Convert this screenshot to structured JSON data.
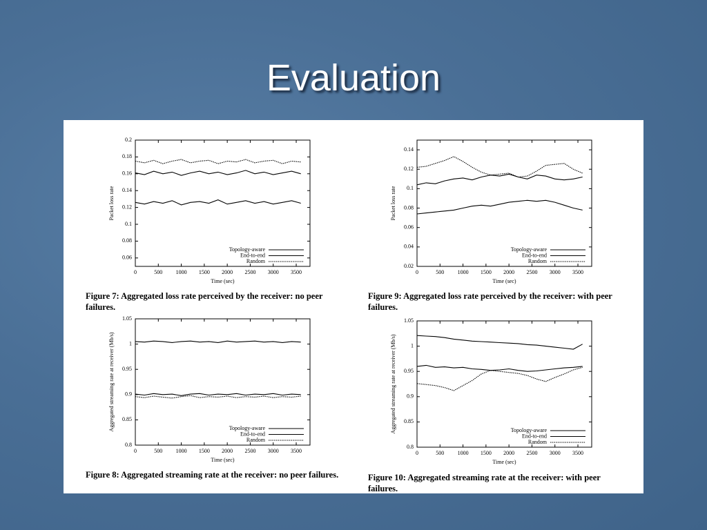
{
  "title": "Evaluation",
  "chart_data": [
    {
      "type": "line",
      "caption": "Figure 7: Aggregated loss rate perceived by the receiver: no peer failures.",
      "xlabel": "Time (sec)",
      "ylabel": "Packet loss rate",
      "x": [
        0,
        200,
        400,
        600,
        800,
        1000,
        1200,
        1400,
        1600,
        1800,
        2000,
        2200,
        2400,
        2600,
        2800,
        3000,
        3200,
        3400,
        3600
      ],
      "xlim": [
        0,
        3800
      ],
      "xticks": [
        0,
        500,
        1000,
        1500,
        2000,
        2500,
        3000,
        3500
      ],
      "ylim": [
        0.05,
        0.2
      ],
      "yticks": [
        0.06,
        0.08,
        0.1,
        0.12,
        0.14,
        0.16,
        0.18,
        0.2
      ],
      "legend": "lower right",
      "series": [
        {
          "name": "Topology-aware",
          "color": "#000000",
          "style": "solid",
          "values": [
            0.126,
            0.124,
            0.127,
            0.125,
            0.128,
            0.123,
            0.126,
            0.127,
            0.125,
            0.129,
            0.124,
            0.126,
            0.128,
            0.125,
            0.127,
            0.124,
            0.126,
            0.128,
            0.125
          ]
        },
        {
          "name": "End-to-end",
          "color": "#000000",
          "style": "solid",
          "values": [
            0.161,
            0.159,
            0.163,
            0.16,
            0.162,
            0.158,
            0.161,
            0.163,
            0.16,
            0.162,
            0.159,
            0.161,
            0.164,
            0.16,
            0.162,
            0.159,
            0.161,
            0.163,
            0.16
          ]
        },
        {
          "name": "Random",
          "color": "#000000",
          "style": "dotted",
          "values": [
            0.175,
            0.173,
            0.176,
            0.172,
            0.175,
            0.177,
            0.173,
            0.175,
            0.176,
            0.172,
            0.175,
            0.174,
            0.177,
            0.173,
            0.175,
            0.176,
            0.172,
            0.175,
            0.174
          ]
        }
      ]
    },
    {
      "type": "line",
      "caption": "Figure 8: Aggregated streaming rate at the receiver: no peer failures.",
      "xlabel": "Time (sec)",
      "ylabel": "Aggregated streaming rate at receiver (Mb/s)",
      "x": [
        0,
        200,
        400,
        600,
        800,
        1000,
        1200,
        1400,
        1600,
        1800,
        2000,
        2200,
        2400,
        2600,
        2800,
        3000,
        3200,
        3400,
        3600
      ],
      "xlim": [
        0,
        3800
      ],
      "xticks": [
        0,
        500,
        1000,
        1500,
        2000,
        2500,
        3000,
        3500
      ],
      "ylim": [
        0.8,
        1.05
      ],
      "yticks": [
        0.8,
        0.85,
        0.9,
        0.95,
        1,
        1.05
      ],
      "legend": "lower right",
      "series": [
        {
          "name": "Topology-aware",
          "color": "#000000",
          "style": "solid",
          "values": [
            1.005,
            1.004,
            1.006,
            1.005,
            1.003,
            1.005,
            1.006,
            1.004,
            1.005,
            1.003,
            1.006,
            1.004,
            1.005,
            1.006,
            1.004,
            1.005,
            1.003,
            1.005,
            1.004
          ]
        },
        {
          "name": "End-to-end",
          "color": "#000000",
          "style": "solid",
          "values": [
            0.901,
            0.899,
            0.902,
            0.9,
            0.901,
            0.898,
            0.901,
            0.902,
            0.899,
            0.901,
            0.9,
            0.902,
            0.899,
            0.901,
            0.9,
            0.902,
            0.899,
            0.901,
            0.9
          ]
        },
        {
          "name": "Random",
          "color": "#000000",
          "style": "dotted",
          "values": [
            0.896,
            0.894,
            0.897,
            0.895,
            0.893,
            0.896,
            0.898,
            0.894,
            0.896,
            0.895,
            0.897,
            0.894,
            0.896,
            0.895,
            0.897,
            0.894,
            0.896,
            0.895,
            0.897
          ]
        }
      ]
    },
    {
      "type": "line",
      "caption": "Figure 9: Aggregated loss rate perceived by the receiver: with peer failures.",
      "xlabel": "Time (sec)",
      "ylabel": "Packet loss rate",
      "x": [
        0,
        200,
        400,
        600,
        800,
        1000,
        1200,
        1400,
        1600,
        1800,
        2000,
        2200,
        2400,
        2600,
        2800,
        3000,
        3200,
        3400,
        3600
      ],
      "xlim": [
        0,
        3800
      ],
      "xticks": [
        0,
        500,
        1000,
        1500,
        2000,
        2500,
        3000,
        3500
      ],
      "ylim": [
        0.02,
        0.15
      ],
      "yticks": [
        0.02,
        0.04,
        0.06,
        0.08,
        0.1,
        0.12,
        0.14
      ],
      "legend": "lower right",
      "series": [
        {
          "name": "Topology-aware",
          "color": "#000000",
          "style": "solid",
          "values": [
            0.074,
            0.075,
            0.076,
            0.077,
            0.078,
            0.08,
            0.082,
            0.083,
            0.082,
            0.084,
            0.086,
            0.087,
            0.088,
            0.087,
            0.088,
            0.086,
            0.083,
            0.08,
            0.078
          ]
        },
        {
          "name": "End-to-end",
          "color": "#000000",
          "style": "solid",
          "values": [
            0.104,
            0.106,
            0.105,
            0.108,
            0.11,
            0.111,
            0.109,
            0.112,
            0.114,
            0.113,
            0.115,
            0.112,
            0.11,
            0.114,
            0.113,
            0.11,
            0.109,
            0.11,
            0.112
          ]
        },
        {
          "name": "Random",
          "color": "#000000",
          "style": "dotted",
          "values": [
            0.122,
            0.123,
            0.126,
            0.129,
            0.133,
            0.128,
            0.122,
            0.117,
            0.114,
            0.115,
            0.116,
            0.112,
            0.113,
            0.118,
            0.124,
            0.125,
            0.126,
            0.12,
            0.116
          ]
        }
      ]
    },
    {
      "type": "line",
      "caption": "Figure 10: Aggregated streaming rate at the receiver: with peer failures.",
      "xlabel": "Time (sec)",
      "ylabel": "Aggregated streaming rate at receiver (Mb/s)",
      "x": [
        0,
        200,
        400,
        600,
        800,
        1000,
        1200,
        1400,
        1600,
        1800,
        2000,
        2200,
        2400,
        2600,
        2800,
        3000,
        3200,
        3400,
        3600
      ],
      "xlim": [
        0,
        3800
      ],
      "xticks": [
        0,
        500,
        1000,
        1500,
        2000,
        2500,
        3000,
        3500
      ],
      "ylim": [
        0.8,
        1.05
      ],
      "yticks": [
        0.8,
        0.85,
        0.9,
        0.95,
        1,
        1.05
      ],
      "legend": "lower right",
      "series": [
        {
          "name": "Topology-aware",
          "color": "#000000",
          "style": "solid",
          "values": [
            1.021,
            1.02,
            1.019,
            1.017,
            1.014,
            1.012,
            1.01,
            1.009,
            1.008,
            1.007,
            1.006,
            1.005,
            1.003,
            1.002,
            1.0,
            0.998,
            0.996,
            0.994,
            1.004
          ]
        },
        {
          "name": "End-to-end",
          "color": "#000000",
          "style": "solid",
          "values": [
            0.96,
            0.962,
            0.958,
            0.959,
            0.957,
            0.958,
            0.955,
            0.954,
            0.952,
            0.953,
            0.955,
            0.952,
            0.95,
            0.951,
            0.953,
            0.955,
            0.957,
            0.958,
            0.96
          ]
        },
        {
          "name": "Random",
          "color": "#000000",
          "style": "dotted",
          "values": [
            0.926,
            0.924,
            0.922,
            0.918,
            0.912,
            0.922,
            0.932,
            0.945,
            0.952,
            0.95,
            0.948,
            0.946,
            0.942,
            0.935,
            0.93,
            0.938,
            0.945,
            0.953,
            0.958
          ]
        }
      ]
    }
  ]
}
